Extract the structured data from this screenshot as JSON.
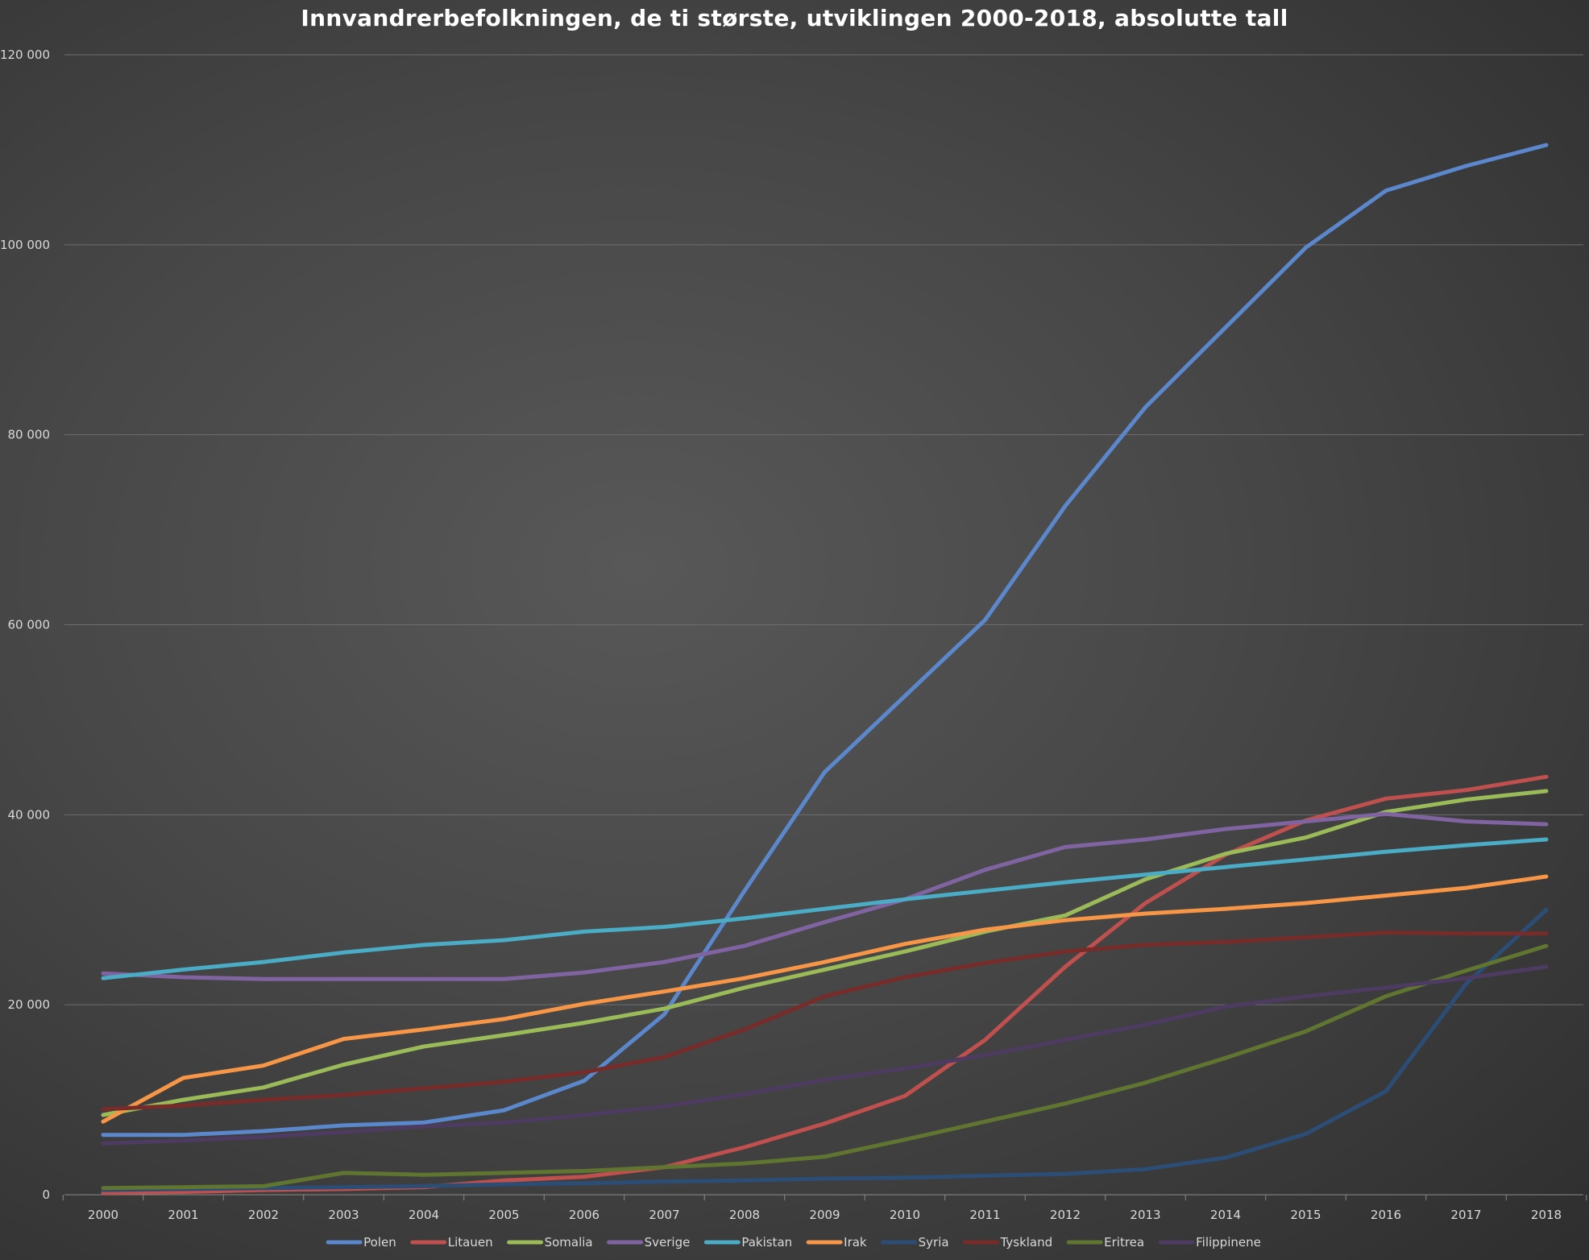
{
  "chart_data": {
    "type": "line",
    "title": "Innvandrerbefolkningen, de ti største, utviklingen 2000-2018, absolutte tall",
    "xlabel": "",
    "ylabel": "",
    "categories": [
      "2000",
      "2001",
      "2002",
      "2003",
      "2004",
      "2005",
      "2006",
      "2007",
      "2008",
      "2009",
      "2010",
      "2011",
      "2012",
      "2013",
      "2014",
      "2015",
      "2016",
      "2017",
      "2018"
    ],
    "ylim": [
      0,
      120000
    ],
    "yticks": [
      0,
      20000,
      40000,
      60000,
      80000,
      100000,
      120000
    ],
    "ytick_labels": [
      "0",
      "20 000",
      "40 000",
      "60 000",
      "80 000",
      "100 000",
      "120 000"
    ],
    "grid": true,
    "legend_position": "bottom",
    "series": [
      {
        "name": "Polen",
        "color": "#5b88cc",
        "values": [
          6300,
          6300,
          6700,
          7300,
          7600,
          8900,
          12000,
          19000,
          32000,
          44500,
          52500,
          60500,
          72500,
          82900,
          91300,
          99700,
          105700,
          108300,
          110500
        ]
      },
      {
        "name": "Litauen",
        "color": "#c0504d",
        "values": [
          200,
          300,
          500,
          600,
          800,
          1500,
          1900,
          2900,
          5000,
          7500,
          10400,
          16300,
          24000,
          30700,
          35800,
          39400,
          41700,
          42600,
          44000
        ]
      },
      {
        "name": "Somalia",
        "color": "#9bbb59",
        "values": [
          8400,
          10000,
          11300,
          13700,
          15600,
          16800,
          18100,
          19600,
          21800,
          23700,
          25600,
          27700,
          29400,
          33200,
          35900,
          37600,
          40300,
          41600,
          42500
        ]
      },
      {
        "name": "Sverige",
        "color": "#8064a2",
        "values": [
          23300,
          22900,
          22700,
          22700,
          22700,
          22700,
          23400,
          24500,
          26200,
          28700,
          31100,
          34200,
          36600,
          37400,
          38500,
          39300,
          40100,
          39300,
          39000
        ]
      },
      {
        "name": "Pakistan",
        "color": "#4bacc6",
        "values": [
          22800,
          23700,
          24500,
          25500,
          26300,
          26800,
          27700,
          28200,
          29100,
          30100,
          31100,
          32000,
          32900,
          33700,
          34500,
          35300,
          36100,
          36800,
          37400
        ]
      },
      {
        "name": "Irak",
        "color": "#f79646",
        "values": [
          7700,
          12300,
          13600,
          16400,
          17400,
          18500,
          20100,
          21400,
          22800,
          24500,
          26400,
          27900,
          28900,
          29600,
          30100,
          30700,
          31500,
          32300,
          33500
        ]
      },
      {
        "name": "Syria",
        "color": "#2c4d75",
        "values": [
          500,
          600,
          700,
          800,
          900,
          1100,
          1200,
          1400,
          1500,
          1700,
          1800,
          2000,
          2200,
          2700,
          3900,
          6400,
          10900,
          22200,
          30000
        ]
      },
      {
        "name": "Tyskland",
        "color": "#772c2a",
        "values": [
          9000,
          9400,
          10000,
          10500,
          11200,
          11900,
          12900,
          14500,
          17400,
          20900,
          22900,
          24400,
          25600,
          26300,
          26600,
          27100,
          27600,
          27500,
          27500
        ]
      },
      {
        "name": "Eritrea",
        "color": "#5f7530",
        "values": [
          700,
          800,
          900,
          2300,
          2100,
          2300,
          2500,
          2900,
          3300,
          4000,
          5800,
          7700,
          9600,
          11800,
          14400,
          17200,
          20900,
          23600,
          26200
        ]
      },
      {
        "name": "Filippinene",
        "color": "#4d3b62",
        "values": [
          5400,
          5700,
          6100,
          6600,
          7200,
          7600,
          8400,
          9300,
          10600,
          12100,
          13300,
          14700,
          16300,
          17900,
          19800,
          20900,
          21800,
          22800,
          24000
        ]
      }
    ]
  }
}
